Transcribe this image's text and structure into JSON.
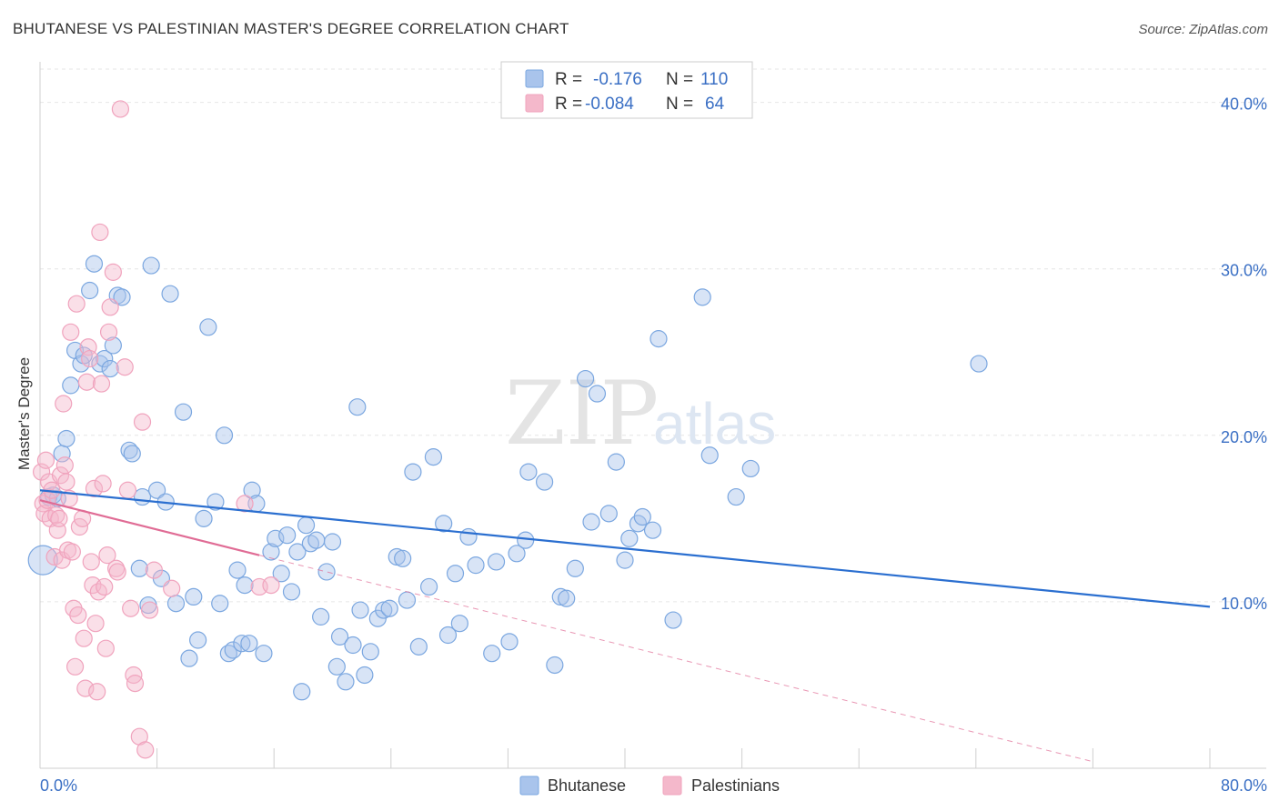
{
  "header": {
    "title": "BHUTANESE VS PALESTINIAN MASTER'S DEGREE CORRELATION CHART",
    "source": "Source: ZipAtlas.com"
  },
  "chart_data": {
    "type": "scatter",
    "ylabel": "Master's Degree",
    "xlim": [
      0,
      80
    ],
    "ylim": [
      0,
      42
    ],
    "x_tick_labels": [
      "0.0%",
      "80.0%"
    ],
    "y_ticks": [
      10,
      20,
      30,
      40
    ],
    "y_tick_labels": [
      "10.0%",
      "20.0%",
      "30.0%",
      "40.0%"
    ],
    "grid": true,
    "legend": {
      "placement": "top-center",
      "rows": [
        {
          "r_label": "R =",
          "r_value": "-0.176",
          "n_label": "N =",
          "n_value": "110",
          "color": "#a9c4ec"
        },
        {
          "r_label": "R =",
          "r_value": "-0.084",
          "n_label": "N =",
          "n_value": "64",
          "color": "#f4b8cb"
        }
      ]
    },
    "bottom_legend": [
      "Bhutanese",
      "Palestinians"
    ],
    "watermark": {
      "zip": "ZIP",
      "atlas": "atlas"
    },
    "series": [
      {
        "name": "Bhutanese",
        "color": "#7ba7e0",
        "line_color": "#2b6fd0",
        "trend": {
          "x": [
            0,
            80
          ],
          "y": [
            16.7,
            9.7
          ]
        },
        "points": [
          [
            0.2,
            12.5
          ],
          [
            0.6,
            16.3
          ],
          [
            0.9,
            16.4
          ],
          [
            1.2,
            16.2
          ],
          [
            1.5,
            18.9
          ],
          [
            1.8,
            19.8
          ],
          [
            2.1,
            23
          ],
          [
            2.4,
            25.1
          ],
          [
            2.8,
            24.3
          ],
          [
            3.0,
            24.8
          ],
          [
            3.4,
            28.7
          ],
          [
            3.7,
            30.3
          ],
          [
            4.1,
            24.3
          ],
          [
            4.4,
            24.6
          ],
          [
            4.8,
            24.0
          ],
          [
            5.0,
            25.4
          ],
          [
            5.3,
            28.4
          ],
          [
            5.6,
            28.3
          ],
          [
            6.1,
            19.1
          ],
          [
            6.3,
            18.9
          ],
          [
            6.8,
            12.0
          ],
          [
            7.0,
            16.3
          ],
          [
            7.4,
            9.8
          ],
          [
            7.6,
            30.2
          ],
          [
            8.0,
            16.7
          ],
          [
            8.3,
            11.4
          ],
          [
            8.6,
            16.0
          ],
          [
            8.9,
            28.5
          ],
          [
            9.3,
            9.9
          ],
          [
            9.8,
            21.4
          ],
          [
            10.2,
            6.6
          ],
          [
            10.5,
            10.3
          ],
          [
            10.8,
            7.7
          ],
          [
            11.2,
            15.0
          ],
          [
            11.5,
            26.5
          ],
          [
            12.0,
            16.0
          ],
          [
            12.3,
            9.9
          ],
          [
            12.6,
            20.0
          ],
          [
            12.9,
            6.9
          ],
          [
            13.2,
            7.1
          ],
          [
            13.5,
            11.9
          ],
          [
            13.8,
            7.5
          ],
          [
            14.0,
            11.0
          ],
          [
            14.3,
            7.5
          ],
          [
            14.5,
            16.7
          ],
          [
            14.8,
            15.9
          ],
          [
            15.3,
            6.9
          ],
          [
            15.8,
            13.0
          ],
          [
            16.1,
            13.8
          ],
          [
            16.5,
            11.7
          ],
          [
            16.9,
            14.0
          ],
          [
            17.2,
            10.6
          ],
          [
            17.6,
            13.0
          ],
          [
            17.9,
            4.6
          ],
          [
            18.2,
            14.6
          ],
          [
            18.5,
            13.5
          ],
          [
            18.9,
            13.7
          ],
          [
            19.2,
            9.1
          ],
          [
            19.6,
            11.8
          ],
          [
            20.0,
            13.6
          ],
          [
            20.3,
            6.1
          ],
          [
            20.5,
            7.9
          ],
          [
            20.9,
            5.2
          ],
          [
            21.4,
            7.4
          ],
          [
            21.7,
            21.7
          ],
          [
            21.9,
            9.5
          ],
          [
            22.2,
            5.6
          ],
          [
            22.6,
            7.0
          ],
          [
            23.1,
            9.0
          ],
          [
            23.5,
            9.5
          ],
          [
            23.9,
            9.6
          ],
          [
            24.4,
            12.7
          ],
          [
            24.8,
            12.6
          ],
          [
            25.1,
            10.1
          ],
          [
            25.5,
            17.8
          ],
          [
            25.9,
            7.3
          ],
          [
            26.6,
            10.9
          ],
          [
            26.9,
            18.7
          ],
          [
            27.6,
            14.7
          ],
          [
            27.9,
            8.0
          ],
          [
            28.4,
            11.7
          ],
          [
            28.7,
            8.7
          ],
          [
            29.3,
            13.9
          ],
          [
            29.8,
            12.2
          ],
          [
            30.9,
            6.9
          ],
          [
            31.2,
            12.4
          ],
          [
            32.1,
            7.6
          ],
          [
            32.6,
            12.9
          ],
          [
            33.2,
            13.7
          ],
          [
            33.4,
            17.8
          ],
          [
            34.5,
            17.2
          ],
          [
            35.2,
            6.2
          ],
          [
            35.6,
            10.3
          ],
          [
            36.0,
            10.2
          ],
          [
            36.6,
            12.0
          ],
          [
            37.3,
            23.4
          ],
          [
            37.7,
            14.8
          ],
          [
            38.1,
            22.5
          ],
          [
            38.9,
            15.3
          ],
          [
            39.4,
            18.4
          ],
          [
            40.0,
            12.5
          ],
          [
            40.3,
            13.8
          ],
          [
            40.9,
            14.7
          ],
          [
            41.2,
            15.1
          ],
          [
            41.9,
            14.3
          ],
          [
            42.3,
            25.8
          ],
          [
            43.3,
            8.9
          ],
          [
            45.3,
            28.3
          ],
          [
            45.8,
            18.8
          ],
          [
            47.6,
            16.3
          ],
          [
            48.6,
            18.0
          ],
          [
            64.2,
            24.3
          ]
        ]
      },
      {
        "name": "Palestinians",
        "color": "#f0a3bd",
        "line_color": "#e06c95",
        "trend": {
          "x": [
            0,
            15
          ],
          "y": [
            16.1,
            12.8
          ]
        },
        "trend_dash": {
          "x": [
            15,
            72
          ],
          "y": [
            12.8,
            0.4
          ]
        },
        "points": [
          [
            0.1,
            17.8
          ],
          [
            0.2,
            15.9
          ],
          [
            0.3,
            15.3
          ],
          [
            0.4,
            18.5
          ],
          [
            0.5,
            16.1
          ],
          [
            0.6,
            17.2
          ],
          [
            0.7,
            15.0
          ],
          [
            0.8,
            16.7
          ],
          [
            1.0,
            12.7
          ],
          [
            1.1,
            15.2
          ],
          [
            1.2,
            14.3
          ],
          [
            1.3,
            15.0
          ],
          [
            1.4,
            17.6
          ],
          [
            1.5,
            12.5
          ],
          [
            1.6,
            21.9
          ],
          [
            1.7,
            18.2
          ],
          [
            1.8,
            17.2
          ],
          [
            1.9,
            13.1
          ],
          [
            2.0,
            16.2
          ],
          [
            2.1,
            26.2
          ],
          [
            2.2,
            13.0
          ],
          [
            2.3,
            9.6
          ],
          [
            2.4,
            6.1
          ],
          [
            2.5,
            27.9
          ],
          [
            2.6,
            9.2
          ],
          [
            2.7,
            14.5
          ],
          [
            2.9,
            15.0
          ],
          [
            3.0,
            7.8
          ],
          [
            3.1,
            4.8
          ],
          [
            3.2,
            23.2
          ],
          [
            3.3,
            25.3
          ],
          [
            3.4,
            24.6
          ],
          [
            3.5,
            12.4
          ],
          [
            3.6,
            11.0
          ],
          [
            3.7,
            16.8
          ],
          [
            3.8,
            8.7
          ],
          [
            3.9,
            4.6
          ],
          [
            4.0,
            10.6
          ],
          [
            4.1,
            32.2
          ],
          [
            4.2,
            23.1
          ],
          [
            4.3,
            17.1
          ],
          [
            4.4,
            10.9
          ],
          [
            4.5,
            7.2
          ],
          [
            4.6,
            12.8
          ],
          [
            4.7,
            26.2
          ],
          [
            4.8,
            27.7
          ],
          [
            5.0,
            29.8
          ],
          [
            5.2,
            12.0
          ],
          [
            5.3,
            11.8
          ],
          [
            5.5,
            39.6
          ],
          [
            5.8,
            24.1
          ],
          [
            6.0,
            16.7
          ],
          [
            6.2,
            9.6
          ],
          [
            6.4,
            5.6
          ],
          [
            6.5,
            5.1
          ],
          [
            6.8,
            1.9
          ],
          [
            7.0,
            20.8
          ],
          [
            7.2,
            1.1
          ],
          [
            7.5,
            9.5
          ],
          [
            7.8,
            11.9
          ],
          [
            9.0,
            10.8
          ],
          [
            14.0,
            15.9
          ],
          [
            15.0,
            10.9
          ],
          [
            15.8,
            11.0
          ]
        ]
      }
    ]
  }
}
